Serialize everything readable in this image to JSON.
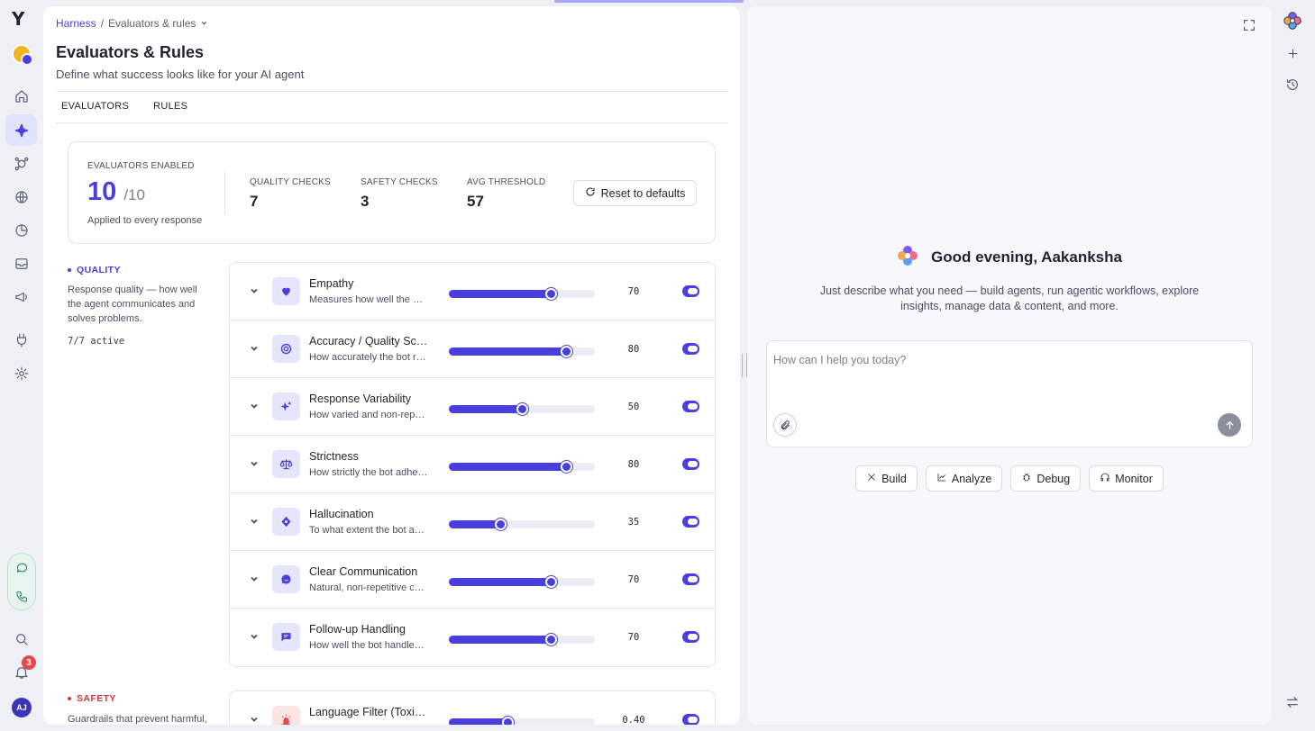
{
  "breadcrumb": {
    "root": "Harness",
    "current": "Evaluators & rules"
  },
  "page": {
    "title": "Evaluators & Rules",
    "subtitle": "Define what success looks like for your AI agent"
  },
  "tabs": [
    {
      "label": "EVALUATORS"
    },
    {
      "label": "RULES"
    }
  ],
  "stats": {
    "enabled_caption": "EVALUATORS ENABLED",
    "enabled_value": "10",
    "enabled_total": "/10",
    "enabled_note": "Applied to every response",
    "quality_caption": "QUALITY CHECKS",
    "quality_value": "7",
    "safety_caption": "SAFETY CHECKS",
    "safety_value": "3",
    "threshold_caption": "AVG THRESHOLD",
    "threshold_value": "57",
    "reset_label": "Reset to defaults"
  },
  "quality": {
    "label": "QUALITY",
    "description": "Response quality — how well the agent communicates and solves problems.",
    "active": "7/7 active",
    "evaluators": [
      {
        "name": "Empathy",
        "desc": "Measures how well the bot recognizes and responds to emotions",
        "value": "70",
        "level": 0.7,
        "icon": "heart-icon",
        "enabled": true
      },
      {
        "name": "Accuracy / Quality Score",
        "desc": "How accurately the bot responds to the user",
        "value": "80",
        "level": 0.8,
        "icon": "target-icon",
        "enabled": true
      },
      {
        "name": "Response Variability",
        "desc": "How varied and non-repetitive the responses are",
        "value": "50",
        "level": 0.5,
        "icon": "sparkles-icon",
        "enabled": true
      },
      {
        "name": "Strictness",
        "desc": "How strictly the bot adheres to its instructions",
        "value": "80",
        "level": 0.8,
        "icon": "scales-icon",
        "enabled": true
      },
      {
        "name": "Hallucination",
        "desc": "To what extent the bot avoids making things up",
        "value": "35",
        "level": 0.35,
        "icon": "brain-icon",
        "enabled": true
      },
      {
        "name": "Clear Communication",
        "desc": "Natural, non-repetitive communication style",
        "value": "70",
        "level": 0.7,
        "icon": "chat-bubble-icon",
        "enabled": true
      },
      {
        "name": "Follow-up Handling",
        "desc": "How well the bot handles follow-up questions",
        "value": "70",
        "level": 0.7,
        "icon": "message-square-icon",
        "enabled": true
      }
    ]
  },
  "safety": {
    "label": "SAFETY",
    "description": "Guardrails that prevent harmful,",
    "evaluators": [
      {
        "name": "Language Filter (Toxicity)",
        "desc": "",
        "value": "0.40",
        "level": 0.4,
        "icon": "alarm-icon",
        "enabled": true
      }
    ]
  },
  "assistant": {
    "greeting": "Good evening, Aakanksha",
    "subtitle": "Just describe what you need — build agents, run agentic workflows, explore insights, manage data & content, and more.",
    "placeholder": "How can I help you today?",
    "chips": [
      {
        "label": "Build"
      },
      {
        "label": "Analyze"
      },
      {
        "label": "Debug"
      },
      {
        "label": "Monitor"
      }
    ]
  },
  "user": {
    "initials": "AJ",
    "notifications": "3"
  },
  "colors": {
    "accent": "#4a3fdd",
    "danger": "#e5484d",
    "voice": "#1f8a5a"
  }
}
